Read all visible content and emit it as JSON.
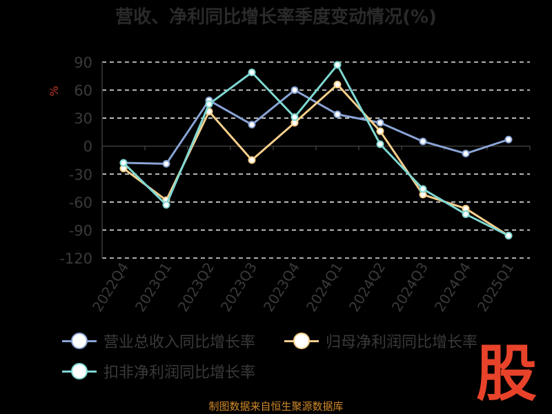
{
  "chart_data": {
    "type": "line",
    "title": "营收、净利同比增长率季度变动情况(%)",
    "ylabel": "%",
    "categories": [
      "2022Q4",
      "2023Q1",
      "2023Q2",
      "2023Q3",
      "2023Q4",
      "2024Q1",
      "2024Q2",
      "2024Q3",
      "2024Q4",
      "2025Q1"
    ],
    "ylim": [
      -120,
      90
    ],
    "yticks": [
      90,
      60,
      30,
      0,
      -30,
      -60,
      -90,
      -120
    ],
    "grid": true,
    "legend_position": "bottom",
    "series": [
      {
        "name": "营业总收入同比增长率",
        "color": "#8aa4d6",
        "values": [
          -18,
          -19,
          49,
          23,
          60,
          34,
          25,
          5,
          -8,
          7
        ]
      },
      {
        "name": "归母净利润同比增长率",
        "color": "#f6cf8c",
        "values": [
          -24,
          -58,
          37,
          -15,
          25,
          66,
          16,
          -52,
          -67,
          -96
        ]
      },
      {
        "name": "扣非净利润同比增长率",
        "color": "#7fd8d2",
        "values": [
          -18,
          -63,
          45,
          79,
          31,
          87,
          2,
          -46,
          -73,
          -96
        ]
      }
    ]
  },
  "source": "制图数据来自恒生聚源数据库",
  "logo": "股"
}
